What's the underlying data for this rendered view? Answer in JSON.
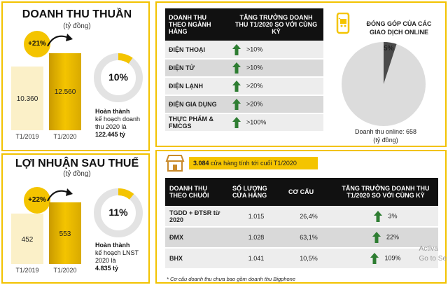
{
  "revenue": {
    "title": "DOANH THU THUẦN",
    "unit": "(tỷ đồng)",
    "growth_badge": "+21%",
    "bars": [
      {
        "label": "T1/2019",
        "value": "10.360",
        "amount": 10360
      },
      {
        "label": "T1/2020",
        "value": "12.560",
        "amount": 12560
      }
    ],
    "completion_pct": "10%",
    "completion_fraction": 0.1,
    "note_line1": "Hoàn thành",
    "note_line2": "kế hoạch doanh",
    "note_line3": "thu 2020 là",
    "note_line4": "122.445 tỷ"
  },
  "profit": {
    "title": "LỢI NHUẬN SAU THUẾ",
    "unit": "(tỷ đồng)",
    "growth_badge": "+22%",
    "bars": [
      {
        "label": "T1/2019",
        "value": "452",
        "amount": 452
      },
      {
        "label": "T1/2020",
        "value": "553",
        "amount": 553
      }
    ],
    "completion_pct": "11%",
    "completion_fraction": 0.11,
    "note_line1": "Hoàn thành",
    "note_line2": "kế hoạch LNST",
    "note_line3": "2020 là",
    "note_line4": "4.835 tỷ"
  },
  "growth_table": {
    "col1": "DOANH THU THEO NGÀNH HÀNG",
    "col2": "TĂNG TRƯỞNG DOANH THU T1/2020 SO VỚI CÙNG KỲ",
    "rows": [
      {
        "name": "ĐIỆN THOẠI",
        "growth": ">10%"
      },
      {
        "name": "ĐIỆN TỬ",
        "growth": ">10%"
      },
      {
        "name": "ĐIỆN LẠNH",
        "growth": ">20%"
      },
      {
        "name": "ĐIỆN GIA DỤNG",
        "growth": ">20%"
      },
      {
        "name": "THỰC PHẨM & FMCGS",
        "growth": ">100%"
      }
    ]
  },
  "online": {
    "title_line1": "ĐÓNG GÓP CỦA CÁC",
    "title_line2": "GIAO DỊCH ONLINE",
    "share_label": "5%",
    "share_fraction": 0.05,
    "note_line1": "Doanh thu online: 658",
    "note_line2": "(tỷ đồng)"
  },
  "chain": {
    "stores_count": "3.084",
    "stores_text": "cửa hàng tính tới cuối T1/2020",
    "headers": [
      "DOANH THU THEO CHUỖI",
      "SỐ LƯỢNG CỬA HÀNG",
      "CƠ CẤU",
      "TĂNG TRƯỞNG DOANH THU T1/2020 SO VỚI CÙNG KỲ"
    ],
    "rows": [
      {
        "name": "TGDD + ĐTSR từ 2020",
        "stores": "1.015",
        "share": "26,4%",
        "growth": "3%"
      },
      {
        "name": "ĐMX",
        "stores": "1.028",
        "share": "63,1%",
        "growth": "22%"
      },
      {
        "name": "BHX",
        "stores": "1.041",
        "share": "10,5%",
        "growth": "109%"
      }
    ],
    "footnote": "* Cơ cấu doanh thu chưa bao gồm doanh thu Bigphone"
  },
  "watermark": {
    "line1": "Activa",
    "line2": "Go to Se"
  },
  "colors": {
    "accent": "#f4c400",
    "arrow_green": "#2e7d32",
    "dark": "#111111",
    "pale_bar": "#fbf0c8"
  },
  "icons": {
    "up_arrow": "up-arrow-icon",
    "phone": "smartphone-cart-icon",
    "store": "store-icon"
  }
}
